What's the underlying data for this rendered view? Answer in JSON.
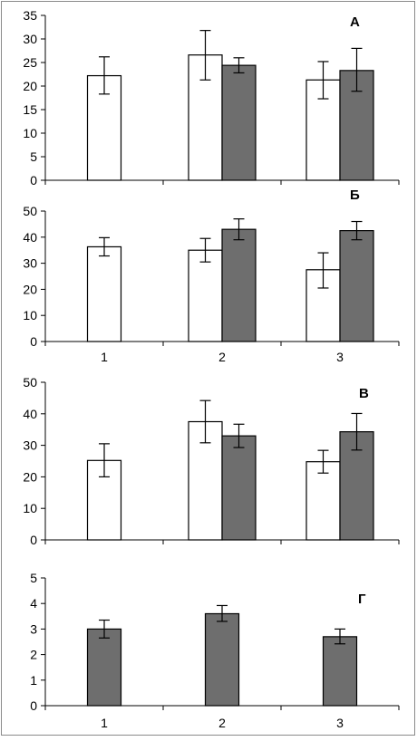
{
  "chart_data": [
    {
      "type": "bar",
      "panel_label": "А",
      "categories": [
        "1",
        "2",
        "3"
      ],
      "show_x_tick_labels": false,
      "ylim": [
        0,
        35
      ],
      "yticks": [
        "0",
        "5",
        "10",
        "15",
        "20",
        "25",
        "30",
        "35"
      ],
      "series": [
        {
          "color": "#ffffff",
          "values": [
            22.2,
            26.6,
            21.3
          ],
          "err_low": [
            18.3,
            21.3,
            17.3
          ],
          "err_high": [
            26.2,
            31.8,
            25.2
          ]
        },
        {
          "color": "#6e6e6e",
          "values": [
            null,
            24.4,
            23.3
          ],
          "err_low": [
            null,
            22.8,
            18.9
          ],
          "err_high": [
            null,
            26.0,
            28.0
          ]
        }
      ]
    },
    {
      "type": "bar",
      "panel_label": "Б",
      "categories": [
        "1",
        "2",
        "3"
      ],
      "show_x_tick_labels": true,
      "ylim": [
        0,
        50
      ],
      "yticks": [
        "0",
        "10",
        "20",
        "30",
        "40",
        "50"
      ],
      "series": [
        {
          "color": "#ffffff",
          "values": [
            36.3,
            35.0,
            27.5
          ],
          "err_low": [
            32.8,
            30.5,
            20.5
          ],
          "err_high": [
            39.8,
            39.5,
            34.0
          ]
        },
        {
          "color": "#6e6e6e",
          "values": [
            null,
            43.0,
            42.5
          ],
          "err_low": [
            null,
            39.0,
            39.0
          ],
          "err_high": [
            null,
            47.0,
            46.0
          ]
        }
      ]
    },
    {
      "type": "bar",
      "panel_label": "В",
      "categories": [
        "1",
        "2",
        "3"
      ],
      "show_x_tick_labels": false,
      "ylim": [
        0,
        50
      ],
      "yticks": [
        "0",
        "10",
        "20",
        "30",
        "40",
        "50"
      ],
      "series": [
        {
          "color": "#ffffff",
          "values": [
            25.2,
            37.5,
            24.8
          ],
          "err_low": [
            20.0,
            30.8,
            21.2
          ],
          "err_high": [
            30.5,
            44.2,
            28.4
          ]
        },
        {
          "color": "#6e6e6e",
          "values": [
            null,
            33.0,
            34.3
          ],
          "err_low": [
            null,
            29.3,
            28.5
          ],
          "err_high": [
            null,
            36.7,
            40.1
          ]
        }
      ]
    },
    {
      "type": "bar",
      "panel_label": "Г",
      "categories": [
        "1",
        "2",
        "3"
      ],
      "show_x_tick_labels": true,
      "ylim": [
        0,
        5
      ],
      "yticks": [
        "0",
        "1",
        "2",
        "3",
        "4",
        "5"
      ],
      "series": [
        {
          "color": "#6e6e6e",
          "values": [
            3.0,
            3.6,
            2.7
          ],
          "err_low": [
            2.65,
            3.3,
            2.42
          ],
          "err_high": [
            3.35,
            3.92,
            3.0
          ]
        }
      ]
    }
  ]
}
